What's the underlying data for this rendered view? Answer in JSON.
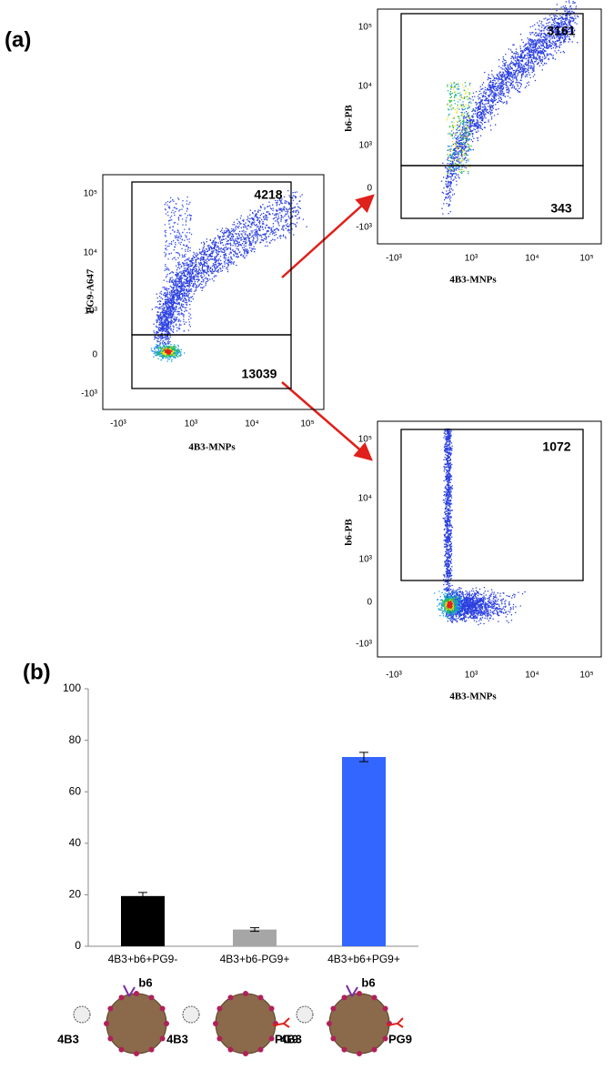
{
  "panel_labels": [
    "(a)",
    "(b)"
  ],
  "flow_plots": [
    {
      "y_label": "PG9-A647",
      "x_label": "4B3-MNPs",
      "y_ticks": [
        "10⁵",
        "10⁴",
        "10³",
        "0",
        "-10³"
      ],
      "x_ticks": [
        "-10³",
        "10³",
        "10⁴",
        "10⁵"
      ],
      "gates": [
        "4218",
        "13039"
      ]
    },
    {
      "y_label": "b6-PB",
      "x_label": "4B3-MNPs",
      "y_ticks": [
        "10⁵",
        "10⁴",
        "10³",
        "0",
        "-10³"
      ],
      "x_ticks": [
        "-10³",
        "10³",
        "10⁴",
        "10⁵"
      ],
      "gates": [
        "3161",
        "343"
      ]
    },
    {
      "y_label": "b6-PB",
      "x_label": "4B3-MNPs",
      "y_ticks": [
        "10⁵",
        "10⁴",
        "10³",
        "0",
        "-10³"
      ],
      "x_ticks": [
        "-10³",
        "10³",
        "10⁴",
        "10⁵"
      ],
      "gates": [
        "1072"
      ]
    }
  ],
  "chart_data": {
    "type": "bar",
    "categories": [
      "4B3+b6+PG9-",
      "4B3+b6-PG9+",
      "4B3+b6+PG9+"
    ],
    "values": [
      19.5,
      6.5,
      73.5
    ],
    "errors": [
      1.4,
      0.7,
      1.8
    ],
    "colors": [
      "#000000",
      "#a6a6a6",
      "#3366ff"
    ],
    "ylim": [
      0,
      100
    ],
    "yticks": [
      0,
      20,
      40,
      60,
      80,
      100
    ]
  },
  "illustrations": [
    [
      "4B3",
      "b6"
    ],
    [
      "4B3",
      "PG9"
    ],
    [
      "4B3",
      "b6",
      "PG9"
    ]
  ]
}
